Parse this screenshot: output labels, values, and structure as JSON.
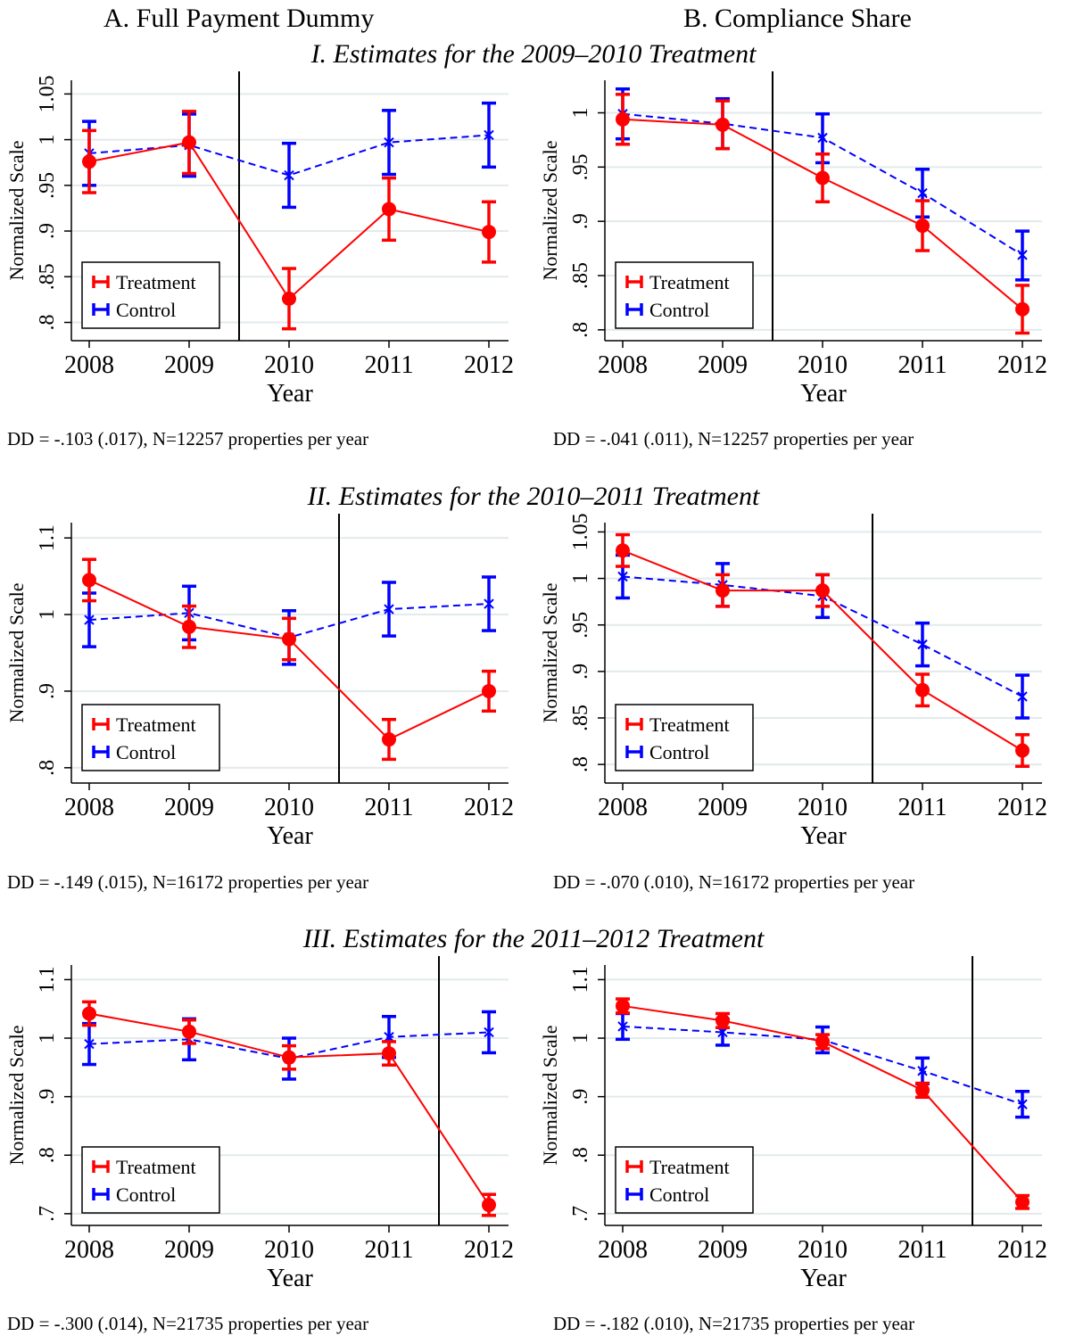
{
  "column_headers": [
    "A. Full Payment Dummy",
    "B. Compliance Share"
  ],
  "row_headers": [
    "I. Estimates for the 2009–2010 Treatment",
    "II. Estimates for the 2010–2011 Treatment",
    "III. Estimates for the 2011–2012 Treatment"
  ],
  "notes": [
    [
      "DD = -.103 (.017), N=12257 properties per year",
      "DD = -.041 (.011), N=12257 properties per year"
    ],
    [
      "DD = -.149 (.015), N=16172 properties per year",
      "DD = -.070 (.010), N=16172 properties per year"
    ],
    [
      "DD = -.300 (.014), N=21735 properties per year",
      "DD = -.182 (.010), N=21735 properties per year"
    ]
  ],
  "colors": {
    "treatment": "#ff0000",
    "control": "#0000ff",
    "grid": "#e3eaec",
    "vline": "#000000"
  },
  "chart_data": [
    {
      "type": "line",
      "id": "A-I",
      "x": [
        "2008",
        "2009",
        "2010",
        "2011",
        "2012"
      ],
      "xlabel": "Year",
      "ylabel": "Normalized Scale",
      "ylim": [
        0.78,
        1.065
      ],
      "yticks": [
        0.8,
        0.85,
        0.9,
        0.95,
        1,
        1.05
      ],
      "yticklabels": [
        ".8",
        ".85",
        ".9",
        ".95",
        "1",
        "1.05"
      ],
      "grid": true,
      "legend": "bottom-left",
      "treatment_line_after": "2009",
      "series": [
        {
          "name": "Treatment",
          "values": [
            0.976,
            0.997,
            0.826,
            0.924,
            0.899
          ],
          "ci_low": [
            0.942,
            0.963,
            0.793,
            0.89,
            0.866
          ],
          "ci_high": [
            1.01,
            1.031,
            0.859,
            0.958,
            0.932
          ]
        },
        {
          "name": "Control",
          "values": [
            0.985,
            0.994,
            0.961,
            0.997,
            1.005
          ],
          "ci_low": [
            0.95,
            0.96,
            0.926,
            0.962,
            0.97
          ],
          "ci_high": [
            1.02,
            1.028,
            0.996,
            1.032,
            1.04
          ]
        }
      ]
    },
    {
      "type": "line",
      "id": "B-I",
      "x": [
        "2008",
        "2009",
        "2010",
        "2011",
        "2012"
      ],
      "xlabel": "Year",
      "ylabel": "Normalized Scale",
      "ylim": [
        0.79,
        1.03
      ],
      "yticks": [
        0.8,
        0.85,
        0.9,
        0.95,
        1
      ],
      "yticklabels": [
        ".8",
        ".85",
        ".9",
        ".95",
        "1"
      ],
      "grid": true,
      "legend": "bottom-left",
      "treatment_line_after": "2009",
      "series": [
        {
          "name": "Treatment",
          "values": [
            0.994,
            0.989,
            0.94,
            0.896,
            0.819
          ],
          "ci_low": [
            0.971,
            0.967,
            0.918,
            0.873,
            0.797
          ],
          "ci_high": [
            1.017,
            1.011,
            0.962,
            0.919,
            0.841
          ]
        },
        {
          "name": "Control",
          "values": [
            0.999,
            0.99,
            0.977,
            0.926,
            0.869
          ],
          "ci_low": [
            0.976,
            0.967,
            0.954,
            0.904,
            0.846
          ],
          "ci_high": [
            1.022,
            1.013,
            0.999,
            0.948,
            0.891
          ]
        }
      ]
    },
    {
      "type": "line",
      "id": "A-II",
      "x": [
        "2008",
        "2009",
        "2010",
        "2011",
        "2012"
      ],
      "xlabel": "Year",
      "ylabel": "Normalized Scale",
      "ylim": [
        0.78,
        1.12
      ],
      "yticks": [
        0.8,
        0.9,
        1,
        1.1
      ],
      "yticklabels": [
        ".8",
        ".9",
        "1",
        "1.1"
      ],
      "grid": true,
      "legend": "bottom-left",
      "treatment_line_after": "2010",
      "series": [
        {
          "name": "Treatment",
          "values": [
            1.045,
            0.984,
            0.968,
            0.837,
            0.9
          ],
          "ci_low": [
            1.018,
            0.957,
            0.941,
            0.811,
            0.874
          ],
          "ci_high": [
            1.072,
            1.011,
            0.995,
            0.863,
            0.926
          ]
        },
        {
          "name": "Control",
          "values": [
            0.993,
            1.002,
            0.97,
            1.007,
            1.014
          ],
          "ci_low": [
            0.958,
            0.967,
            0.935,
            0.972,
            0.979
          ],
          "ci_high": [
            1.028,
            1.037,
            1.005,
            1.042,
            1.049
          ]
        }
      ]
    },
    {
      "type": "line",
      "id": "B-II",
      "x": [
        "2008",
        "2009",
        "2010",
        "2011",
        "2012"
      ],
      "xlabel": "Year",
      "ylabel": "Normalized Scale",
      "ylim": [
        0.78,
        1.06
      ],
      "yticks": [
        0.8,
        0.85,
        0.9,
        0.95,
        1,
        1.05
      ],
      "yticklabels": [
        ".8",
        ".85",
        ".9",
        ".95",
        "1",
        "1.05"
      ],
      "grid": true,
      "legend": "bottom-left",
      "treatment_line_after": "2010",
      "series": [
        {
          "name": "Treatment",
          "values": [
            1.03,
            0.987,
            0.987,
            0.88,
            0.815
          ],
          "ci_low": [
            1.013,
            0.97,
            0.97,
            0.863,
            0.798
          ],
          "ci_high": [
            1.047,
            1.004,
            1.004,
            0.897,
            0.832
          ]
        },
        {
          "name": "Control",
          "values": [
            1.002,
            0.993,
            0.981,
            0.929,
            0.873
          ],
          "ci_low": [
            0.979,
            0.97,
            0.958,
            0.906,
            0.85
          ],
          "ci_high": [
            1.025,
            1.016,
            1.004,
            0.952,
            0.896
          ]
        }
      ]
    },
    {
      "type": "line",
      "id": "A-III",
      "x": [
        "2008",
        "2009",
        "2010",
        "2011",
        "2012"
      ],
      "xlabel": "Year",
      "ylabel": "Normalized Scale",
      "ylim": [
        0.68,
        1.125
      ],
      "yticks": [
        0.7,
        0.8,
        0.9,
        1,
        1.1
      ],
      "yticklabels": [
        ".7",
        ".8",
        ".9",
        "1",
        "1.1"
      ],
      "grid": true,
      "legend": "bottom-left",
      "treatment_line_after": "2011",
      "series": [
        {
          "name": "Treatment",
          "values": [
            1.042,
            1.011,
            0.967,
            0.974,
            0.715
          ],
          "ci_low": [
            1.022,
            0.991,
            0.947,
            0.954,
            0.697
          ],
          "ci_high": [
            1.062,
            1.031,
            0.987,
            0.994,
            0.733
          ]
        },
        {
          "name": "Control",
          "values": [
            0.99,
            0.998,
            0.965,
            1.002,
            1.01
          ],
          "ci_low": [
            0.955,
            0.963,
            0.93,
            0.967,
            0.975
          ],
          "ci_high": [
            1.025,
            1.033,
            1.0,
            1.037,
            1.045
          ]
        }
      ]
    },
    {
      "type": "line",
      "id": "B-III",
      "x": [
        "2008",
        "2009",
        "2010",
        "2011",
        "2012"
      ],
      "xlabel": "Year",
      "ylabel": "Normalized Scale",
      "ylim": [
        0.68,
        1.125
      ],
      "yticks": [
        0.7,
        0.8,
        0.9,
        1,
        1.1
      ],
      "yticklabels": [
        ".7",
        ".8",
        ".9",
        "1",
        "1.1"
      ],
      "grid": true,
      "legend": "bottom-left",
      "treatment_line_after": "2011",
      "series": [
        {
          "name": "Treatment",
          "values": [
            1.055,
            1.03,
            0.994,
            0.911,
            0.72
          ],
          "ci_low": [
            1.043,
            1.018,
            0.982,
            0.899,
            0.709
          ],
          "ci_high": [
            1.067,
            1.042,
            1.006,
            0.923,
            0.731
          ]
        },
        {
          "name": "Control",
          "values": [
            1.02,
            1.01,
            0.997,
            0.944,
            0.887
          ],
          "ci_low": [
            0.998,
            0.988,
            0.975,
            0.922,
            0.865
          ],
          "ci_high": [
            1.042,
            1.032,
            1.019,
            0.966,
            0.909
          ]
        }
      ]
    }
  ]
}
